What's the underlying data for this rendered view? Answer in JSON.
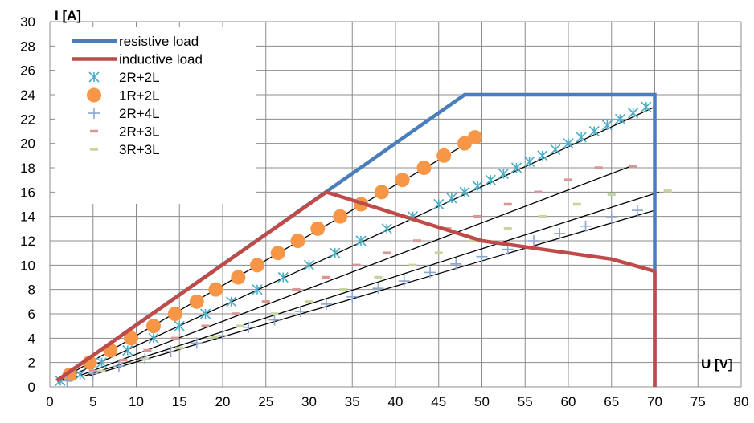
{
  "chart_data": {
    "type": "scatter",
    "title": "",
    "xlabel": "U [V]",
    "ylabel": "I [A]",
    "xlim": [
      0,
      80
    ],
    "ylim": [
      0,
      30
    ],
    "x_ticks": [
      0,
      5,
      10,
      15,
      20,
      25,
      30,
      35,
      40,
      45,
      50,
      55,
      60,
      65,
      70,
      75,
      80
    ],
    "y_ticks": [
      0,
      2,
      4,
      6,
      8,
      10,
      12,
      14,
      16,
      18,
      20,
      22,
      24,
      26,
      28,
      30
    ],
    "grid": true,
    "legend_position": "top-left",
    "lines": [
      {
        "name": "resistive load",
        "color": "#4a7ebb",
        "points": [
          [
            0.8,
            0.5
          ],
          [
            48,
            24
          ],
          [
            70,
            24
          ],
          [
            70,
            0
          ]
        ]
      },
      {
        "name": "inductive load",
        "color": "#be4b48",
        "points": [
          [
            0.8,
            0.5
          ],
          [
            32,
            16
          ],
          [
            50,
            12
          ],
          [
            65,
            10.5
          ],
          [
            70,
            9.5
          ],
          [
            70,
            0
          ]
        ]
      }
    ],
    "series": [
      {
        "name": "2R+2L",
        "marker": "asterisk",
        "color": "#4bacc6",
        "points": [
          [
            1.2,
            0.5
          ],
          [
            3.5,
            1
          ],
          [
            6,
            2
          ],
          [
            9,
            3
          ],
          [
            12,
            4
          ],
          [
            15,
            5
          ],
          [
            18,
            6
          ],
          [
            21,
            7
          ],
          [
            24,
            8
          ],
          [
            27,
            9
          ],
          [
            30,
            10
          ],
          [
            33,
            11
          ],
          [
            36,
            12
          ],
          [
            39,
            13
          ],
          [
            42,
            14
          ],
          [
            45,
            15
          ],
          [
            46.5,
            15.5
          ],
          [
            48,
            16
          ],
          [
            49.5,
            16.5
          ],
          [
            51,
            17
          ],
          [
            52.5,
            17.5
          ],
          [
            54,
            18
          ],
          [
            55.5,
            18.5
          ],
          [
            57,
            19
          ],
          [
            58.5,
            19.5
          ],
          [
            60,
            20
          ],
          [
            61.5,
            20.5
          ],
          [
            63,
            21
          ],
          [
            64.5,
            21.5
          ],
          [
            66,
            22
          ],
          [
            67.5,
            22.5
          ],
          [
            69,
            23
          ]
        ]
      },
      {
        "name": "1R+2L",
        "marker": "circle",
        "color": "#f79646",
        "points": [
          [
            2.3,
            1
          ],
          [
            4.6,
            2
          ],
          [
            7,
            3
          ],
          [
            9.4,
            4
          ],
          [
            12,
            5
          ],
          [
            14.5,
            6
          ],
          [
            17,
            7
          ],
          [
            19.2,
            8
          ],
          [
            21.8,
            9
          ],
          [
            24,
            10
          ],
          [
            26.4,
            11
          ],
          [
            28.7,
            12
          ],
          [
            31,
            13
          ],
          [
            33.6,
            14
          ],
          [
            36,
            15
          ],
          [
            38.4,
            16
          ],
          [
            40.8,
            17
          ],
          [
            43.3,
            18
          ],
          [
            45.6,
            19
          ],
          [
            48,
            20
          ],
          [
            49.2,
            20.5
          ]
        ]
      },
      {
        "name": "2R+4L",
        "marker": "plus",
        "color": "#8ba7cf",
        "points": [
          [
            2,
            0.5
          ],
          [
            5,
            1.1
          ],
          [
            8,
            1.7
          ],
          [
            11,
            2.3
          ],
          [
            14,
            2.9
          ],
          [
            17,
            3.6
          ],
          [
            20,
            4.2
          ],
          [
            23,
            4.9
          ],
          [
            26,
            5.5
          ],
          [
            29,
            6.2
          ],
          [
            32,
            6.8
          ],
          [
            35,
            7.4
          ],
          [
            38,
            8.1
          ],
          [
            41,
            8.7
          ],
          [
            44,
            9.4
          ],
          [
            47,
            10.1
          ],
          [
            50,
            10.7
          ],
          [
            53,
            11.3
          ],
          [
            56,
            12
          ],
          [
            59,
            12.6
          ],
          [
            62,
            13.2
          ],
          [
            65,
            13.9
          ],
          [
            68,
            14.5
          ]
        ]
      },
      {
        "name": "2R+3L",
        "marker": "dash",
        "color": "#d99694",
        "points": [
          [
            5,
            1.3
          ],
          [
            8.5,
            2.2
          ],
          [
            11.3,
            3
          ],
          [
            14.5,
            4
          ],
          [
            18,
            5
          ],
          [
            21.5,
            6
          ],
          [
            25,
            7
          ],
          [
            28.5,
            8
          ],
          [
            32,
            9
          ],
          [
            35.5,
            10
          ],
          [
            39,
            11
          ],
          [
            42.5,
            12
          ],
          [
            46,
            13
          ],
          [
            49.5,
            14
          ],
          [
            53,
            15
          ],
          [
            56.5,
            16
          ],
          [
            60,
            17
          ],
          [
            63.5,
            18
          ],
          [
            67.5,
            18.1
          ]
        ]
      },
      {
        "name": "3R+3L",
        "marker": "dash",
        "color": "#c3d69b",
        "points": [
          [
            6,
            1.3
          ],
          [
            11,
            2.3
          ],
          [
            15,
            3.2
          ],
          [
            19,
            4.1
          ],
          [
            22,
            5
          ],
          [
            26,
            6
          ],
          [
            30,
            7
          ],
          [
            34,
            8
          ],
          [
            38,
            9
          ],
          [
            42,
            10
          ],
          [
            45,
            11
          ],
          [
            49,
            12
          ],
          [
            53,
            13
          ],
          [
            57,
            14
          ],
          [
            61,
            15
          ],
          [
            65,
            15.8
          ],
          [
            71.5,
            16.1
          ]
        ]
      }
    ],
    "trendlines": [
      {
        "color": "#000000",
        "points": [
          [
            1,
            0.5
          ],
          [
            49.5,
            20.5
          ]
        ]
      },
      {
        "color": "#000000",
        "points": [
          [
            1.2,
            0.5
          ],
          [
            70,
            23
          ]
        ]
      },
      {
        "color": "#000000",
        "points": [
          [
            3,
            0.8
          ],
          [
            67.5,
            18.2
          ]
        ]
      },
      {
        "color": "#000000",
        "points": [
          [
            4,
            0.9
          ],
          [
            70.5,
            16
          ]
        ]
      },
      {
        "color": "#000000",
        "points": [
          [
            4.5,
            0.9
          ],
          [
            70,
            14.5
          ]
        ]
      }
    ]
  }
}
